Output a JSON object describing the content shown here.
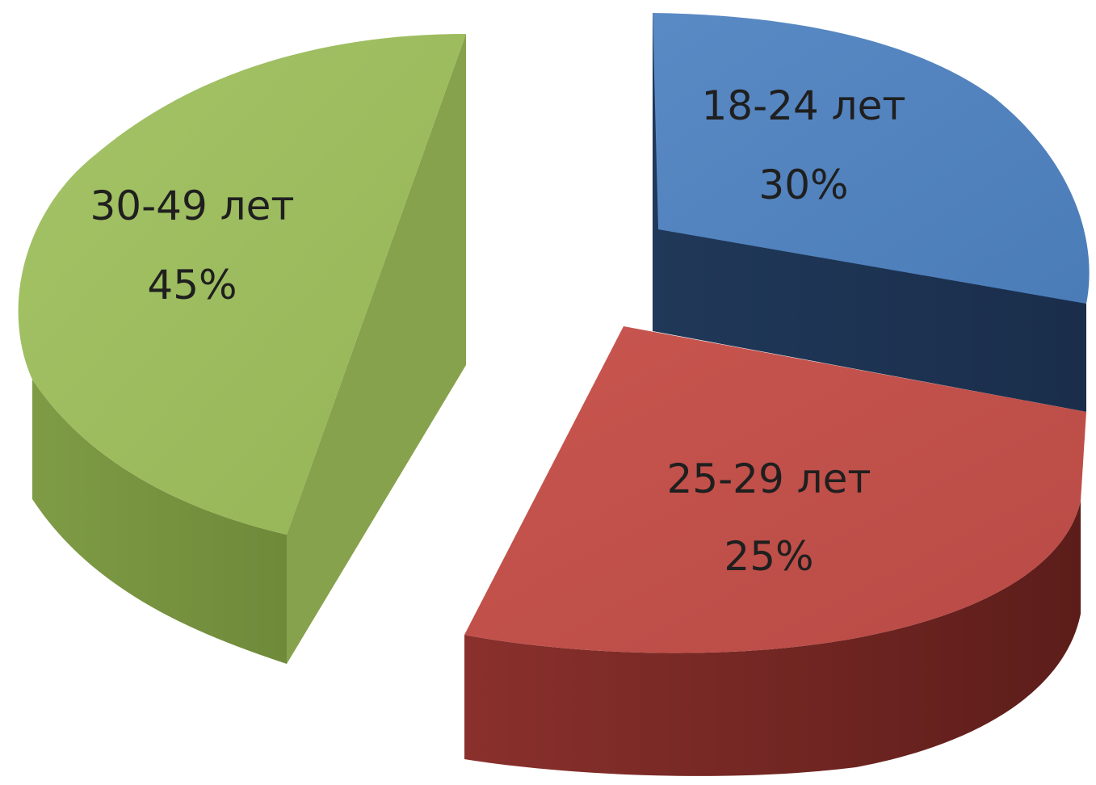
{
  "chart_data": {
    "type": "pie",
    "style": "3d-exploded",
    "title": "",
    "slices": [
      {
        "label": "18-24 лет",
        "value": 30,
        "value_label": "30%",
        "color": "#4f81bd"
      },
      {
        "label": "25-29 лет",
        "value": 25,
        "value_label": "25%",
        "color": "#c0504d"
      },
      {
        "label": "30-49 лет",
        "value": 45,
        "value_label": "45%",
        "color": "#9bbb59"
      }
    ]
  }
}
